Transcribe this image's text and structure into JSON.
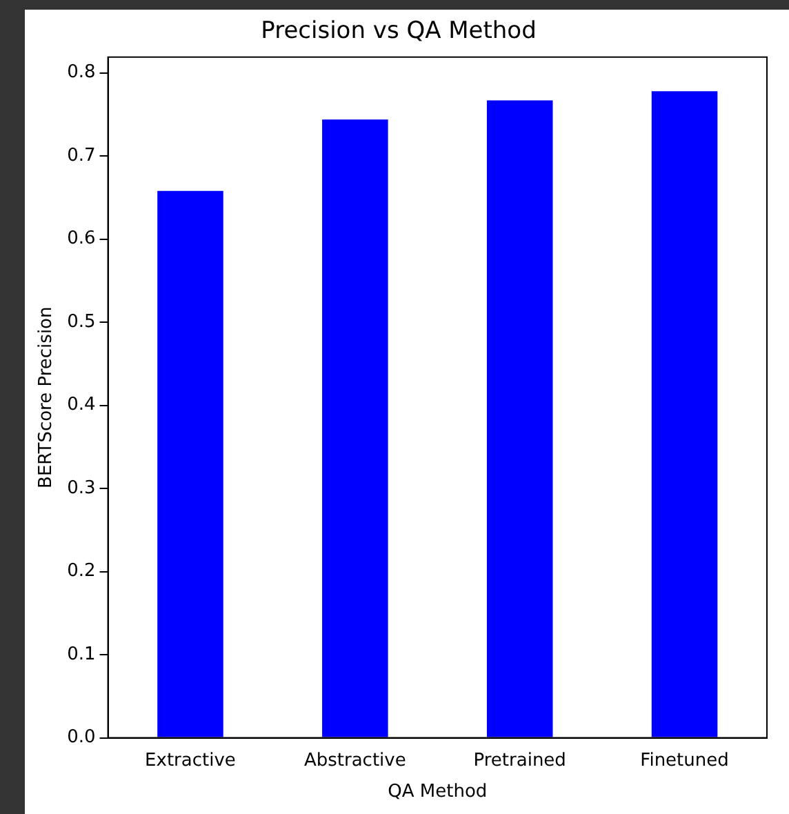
{
  "chart_data": {
    "type": "bar",
    "title": "Precision vs QA Method",
    "xlabel": "QA Method",
    "ylabel": "BERTScore Precision",
    "categories": [
      "Extractive",
      "Abstractive",
      "Pretrained",
      "Finetuned"
    ],
    "values": [
      0.658,
      0.744,
      0.767,
      0.778
    ],
    "color": "#0000ff",
    "ylim": [
      0,
      0.819
    ],
    "yticks": [
      {
        "value": 0,
        "label": "0.0"
      },
      0.1,
      0.2,
      0.3,
      0.4,
      0.5,
      0.6,
      0.7,
      0.8
    ],
    "grid": false,
    "legend": false
  }
}
